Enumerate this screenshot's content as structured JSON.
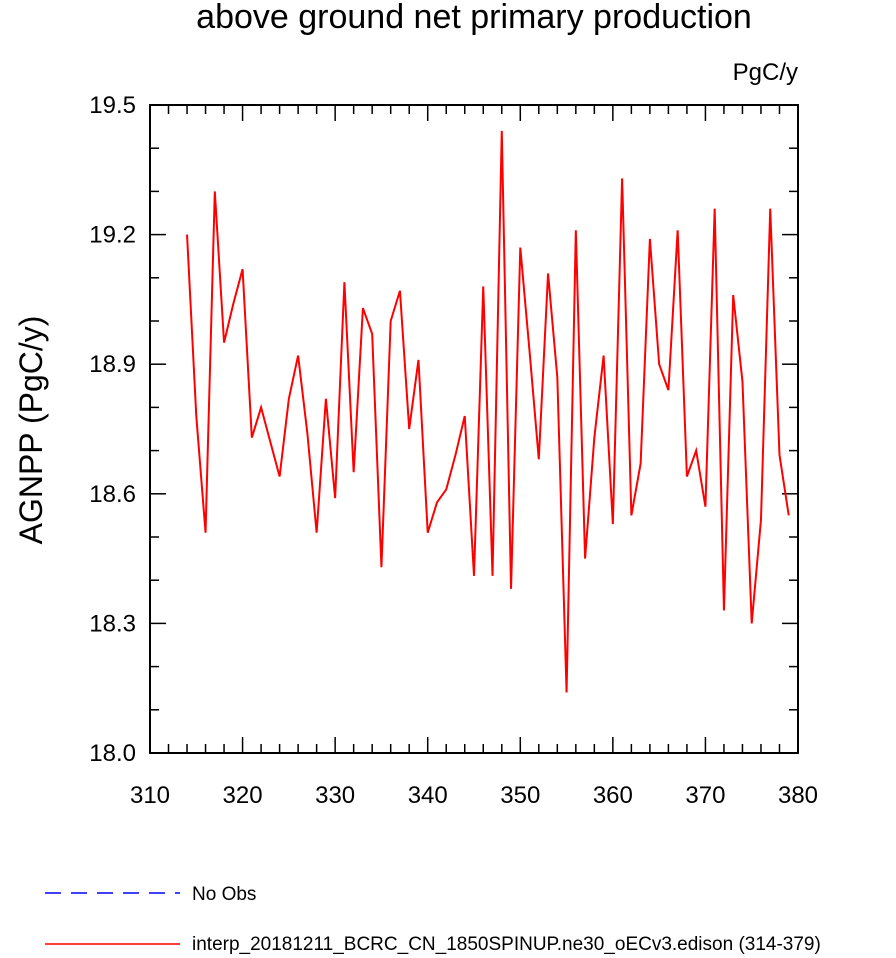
{
  "chart_data": {
    "type": "line",
    "title": "above ground net primary production",
    "units": "PgC/y",
    "ylabel": "AGNPP  (PgC/y)",
    "xlabel": "",
    "xlim": [
      310,
      380
    ],
    "ylim": [
      18.0,
      19.5
    ],
    "xticks": [
      "310",
      "320",
      "330",
      "340",
      "350",
      "360",
      "370",
      "380"
    ],
    "yticks": [
      "18.0",
      "18.3",
      "18.6",
      "18.9",
      "19.2",
      "19.5"
    ],
    "grid": false,
    "legend_position": "bottom",
    "series": [
      {
        "name": "No Obs",
        "color": "#0000ff",
        "style": "dashed",
        "x": [],
        "values": []
      },
      {
        "name": "interp_20181211_BCRC_CN_1850SPINUP.ne30_oECv3.edison (314-379)",
        "color": "#ff0000",
        "style": "solid",
        "x": [
          314,
          315,
          316,
          317,
          318,
          319,
          320,
          321,
          322,
          323,
          324,
          325,
          326,
          327,
          328,
          329,
          330,
          331,
          332,
          333,
          334,
          335,
          336,
          337,
          338,
          339,
          340,
          341,
          342,
          343,
          344,
          345,
          346,
          347,
          348,
          349,
          350,
          351,
          352,
          353,
          354,
          355,
          356,
          357,
          358,
          359,
          360,
          361,
          362,
          363,
          364,
          365,
          366,
          367,
          368,
          369,
          370,
          371,
          372,
          373,
          374,
          375,
          376,
          377,
          378,
          379
        ],
        "values": [
          19.2,
          18.78,
          18.51,
          19.3,
          18.95,
          19.04,
          19.12,
          18.73,
          18.8,
          18.72,
          18.64,
          18.82,
          18.92,
          18.74,
          18.51,
          18.82,
          18.59,
          19.09,
          18.65,
          19.03,
          18.97,
          18.43,
          19.0,
          19.07,
          18.75,
          18.91,
          18.51,
          18.58,
          18.61,
          18.69,
          18.78,
          18.41,
          19.08,
          18.41,
          19.44,
          18.38,
          19.17,
          18.93,
          18.68,
          19.11,
          18.87,
          18.14,
          19.21,
          18.45,
          18.73,
          18.92,
          18.53,
          19.33,
          18.55,
          18.67,
          19.19,
          18.9,
          18.84,
          19.21,
          18.64,
          18.7,
          18.57,
          19.26,
          18.33,
          19.06,
          18.86,
          18.3,
          18.54,
          19.26,
          18.69,
          18.55
        ]
      }
    ]
  }
}
